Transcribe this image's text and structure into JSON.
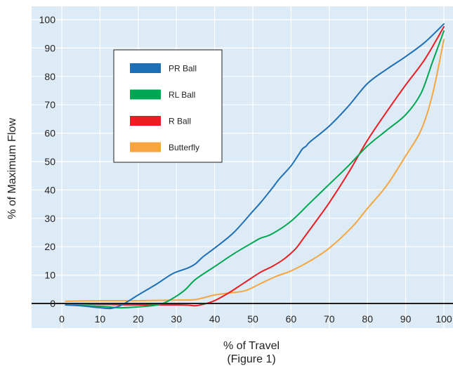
{
  "chart_data": {
    "type": "line",
    "xlabel": "% of Travel",
    "caption": "(Figure 1)",
    "ylabel": "% of Maximum Flow",
    "xlim": [
      0,
      100
    ],
    "ylim": [
      0,
      100
    ],
    "x_ticks": [
      0,
      10,
      20,
      30,
      40,
      50,
      60,
      70,
      80,
      90,
      100
    ],
    "y_ticks": [
      0,
      10,
      20,
      30,
      40,
      50,
      60,
      70,
      80,
      90,
      100
    ],
    "grid": true,
    "legend_position": "top-left",
    "series": [
      {
        "name": "PR Ball",
        "color": "#1f6fb6",
        "points": [
          [
            1,
            -0.5
          ],
          [
            5,
            -0.8
          ],
          [
            10,
            -1.5
          ],
          [
            13,
            -1.7
          ],
          [
            16,
            -0.3
          ],
          [
            20,
            3
          ],
          [
            25,
            7
          ],
          [
            29,
            10.5
          ],
          [
            33,
            12.5
          ],
          [
            35,
            14
          ],
          [
            37,
            16.5
          ],
          [
            40,
            19.5
          ],
          [
            45,
            25
          ],
          [
            50,
            32.5
          ],
          [
            52,
            35.5
          ],
          [
            55,
            40.5
          ],
          [
            57,
            44
          ],
          [
            60,
            48.5
          ],
          [
            62,
            52.5
          ],
          [
            63,
            54.5
          ],
          [
            64,
            55.5
          ],
          [
            65,
            57
          ],
          [
            70,
            62.5
          ],
          [
            75,
            69.5
          ],
          [
            80,
            77.5
          ],
          [
            85,
            82.5
          ],
          [
            90,
            87
          ],
          [
            95,
            92
          ],
          [
            100,
            98.5
          ]
        ]
      },
      {
        "name": "RL Ball",
        "color": "#00a651",
        "points": [
          [
            1,
            -0.5
          ],
          [
            10,
            -1
          ],
          [
            15,
            -1.5
          ],
          [
            20,
            -1.2
          ],
          [
            25,
            -0.5
          ],
          [
            28,
            1
          ],
          [
            32,
            4.5
          ],
          [
            35,
            8.5
          ],
          [
            40,
            13
          ],
          [
            45,
            17.5
          ],
          [
            50,
            21.5
          ],
          [
            52,
            23
          ],
          [
            55,
            24.5
          ],
          [
            60,
            29
          ],
          [
            65,
            35.5
          ],
          [
            70,
            42
          ],
          [
            75,
            48.5
          ],
          [
            80,
            55.5
          ],
          [
            85,
            61
          ],
          [
            90,
            66.5
          ],
          [
            94,
            74
          ],
          [
            97,
            85
          ],
          [
            100,
            96
          ]
        ]
      },
      {
        "name": "R Ball",
        "color": "#ed1c24",
        "points": [
          [
            1,
            0
          ],
          [
            10,
            -0.3
          ],
          [
            20,
            -0.5
          ],
          [
            30,
            -0.5
          ],
          [
            33,
            -0.6
          ],
          [
            35,
            -0.8
          ],
          [
            37,
            -0.3
          ],
          [
            40,
            1
          ],
          [
            44,
            4
          ],
          [
            48,
            7.5
          ],
          [
            52,
            11
          ],
          [
            55,
            13
          ],
          [
            58,
            15.5
          ],
          [
            61,
            19
          ],
          [
            63,
            22.5
          ],
          [
            66,
            28
          ],
          [
            70,
            35.5
          ],
          [
            75,
            46
          ],
          [
            80,
            57.5
          ],
          [
            85,
            67.5
          ],
          [
            90,
            77
          ],
          [
            95,
            86
          ],
          [
            100,
            97.5
          ]
        ]
      },
      {
        "name": "Butterfly",
        "color": "#f7a540",
        "points": [
          [
            1,
            0.8
          ],
          [
            10,
            1
          ],
          [
            20,
            1
          ],
          [
            30,
            1.2
          ],
          [
            35,
            1.4
          ],
          [
            40,
            3
          ],
          [
            44,
            3.7
          ],
          [
            48,
            4.5
          ],
          [
            52,
            7
          ],
          [
            56,
            9.5
          ],
          [
            60,
            11.5
          ],
          [
            65,
            15
          ],
          [
            70,
            19.5
          ],
          [
            76,
            27
          ],
          [
            80,
            33.5
          ],
          [
            85,
            41.5
          ],
          [
            90,
            52
          ],
          [
            94,
            61
          ],
          [
            97,
            73.5
          ],
          [
            100,
            93
          ]
        ]
      }
    ]
  }
}
